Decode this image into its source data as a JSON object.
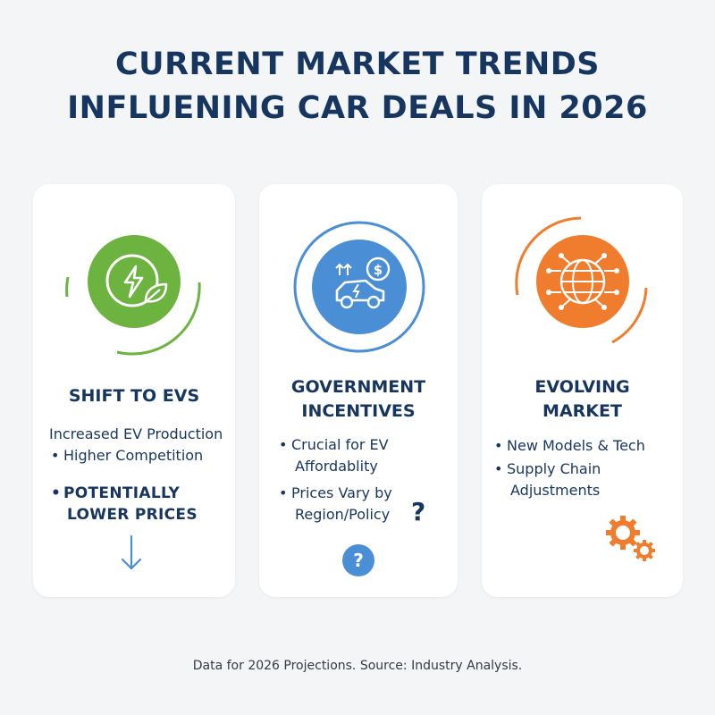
{
  "title": {
    "line1": "CURRENT MARKET TRENDS",
    "line2": "INFLUENING CAR DEALS IN 2026"
  },
  "cards": [
    {
      "icon": "ev-charging-leaf-icon",
      "color": "#6db33f",
      "title": "SHIFT TO EVS",
      "lines": [
        "Increased EV Production",
        "Higher Competition"
      ],
      "emphasis": [
        "POTENTIALLY",
        "LOWER PRICES"
      ],
      "footer_icon": "arrow-down-icon"
    },
    {
      "icon": "car-price-icon",
      "color": "#4a8fd6",
      "title_lines": [
        "GOVERNMENT",
        "INCENTIVES"
      ],
      "bullets": [
        [
          "Crucial for EV",
          "Affordablity"
        ],
        [
          "Prices Vary by",
          "Region/Policy"
        ]
      ],
      "question_mark": "?",
      "badge_question": "?"
    },
    {
      "icon": "globe-network-icon",
      "color": "#f07d2d",
      "title_lines": [
        "EVOLVING",
        "MARKET"
      ],
      "bullets": [
        [
          "New Models & Tech"
        ],
        [
          "Supply Chain",
          "Adjustments"
        ]
      ],
      "footer_icon": "gears-icon"
    }
  ],
  "footer": "Data for 2026 Projections. Source: Industry Analysis."
}
